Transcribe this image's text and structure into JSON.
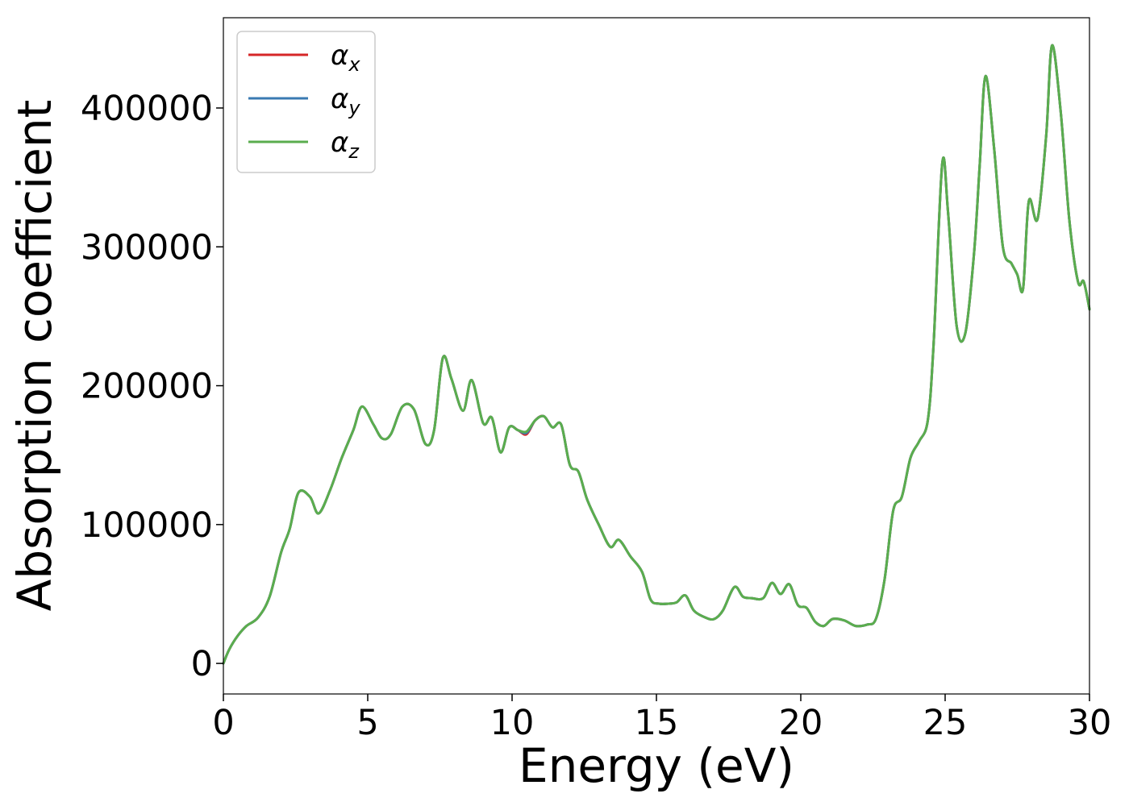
{
  "chart_data": {
    "type": "line",
    "title": "",
    "xlabel": "Energy (eV)",
    "ylabel": "Absorption coefficient",
    "xlim": [
      0,
      30
    ],
    "ylim": [
      -22000,
      465000
    ],
    "xticks": [
      0,
      5,
      10,
      15,
      20,
      25,
      30
    ],
    "xtick_labels": [
      "0",
      "5",
      "10",
      "15",
      "20",
      "25",
      "30"
    ],
    "yticks": [
      0,
      100000,
      200000,
      300000,
      400000
    ],
    "ytick_labels": [
      "0",
      "100000",
      "200000",
      "300000",
      "400000"
    ],
    "grid": false,
    "legend_position": "top-left",
    "x": [
      0,
      0.2,
      0.5,
      0.8,
      1.2,
      1.6,
      2.0,
      2.3,
      2.6,
      3.0,
      3.3,
      3.7,
      4.1,
      4.5,
      4.8,
      5.2,
      5.5,
      5.8,
      6.2,
      6.6,
      7.0,
      7.3,
      7.6,
      7.9,
      8.3,
      8.6,
      9.0,
      9.3,
      9.6,
      9.9,
      10.2,
      10.5,
      10.8,
      11.1,
      11.4,
      11.7,
      12.0,
      12.3,
      12.6,
      13.0,
      13.4,
      13.7,
      14.1,
      14.5,
      14.8,
      15.1,
      15.4,
      15.7,
      16.0,
      16.3,
      16.7,
      17.0,
      17.3,
      17.7,
      18.0,
      18.3,
      18.7,
      19.0,
      19.3,
      19.6,
      19.9,
      20.2,
      20.5,
      20.8,
      21.1,
      21.5,
      21.9,
      22.3,
      22.6,
      22.9,
      23.2,
      23.5,
      23.8,
      24.1,
      24.4,
      24.6,
      24.9,
      25.1,
      25.4,
      25.7,
      26.0,
      26.2,
      26.4,
      26.7,
      27.0,
      27.3,
      27.5,
      27.7,
      27.9,
      28.2,
      28.5,
      28.7,
      29.0,
      29.3,
      29.6,
      29.8,
      30.0
    ],
    "series": [
      {
        "name": "α_x",
        "color": "#d62728",
        "values": [
          0,
          10000,
          20000,
          27000,
          33000,
          48000,
          80000,
          97000,
          123000,
          120000,
          108000,
          125000,
          148000,
          168000,
          185000,
          172000,
          162000,
          165000,
          185000,
          183000,
          158000,
          168000,
          220000,
          205000,
          182000,
          204000,
          173000,
          177000,
          152000,
          170000,
          168000,
          165000,
          175000,
          178000,
          170000,
          172000,
          143000,
          138000,
          118000,
          100000,
          84000,
          89000,
          77000,
          66000,
          46000,
          43000,
          43000,
          44000,
          49000,
          38000,
          33000,
          32000,
          38000,
          55000,
          48000,
          47000,
          47000,
          58000,
          50000,
          57000,
          42000,
          40000,
          30000,
          27000,
          32000,
          31000,
          27000,
          28000,
          32000,
          60000,
          110000,
          120000,
          148000,
          160000,
          175000,
          230000,
          360000,
          325000,
          243000,
          238000,
          295000,
          360000,
          423000,
          370000,
          300000,
          288000,
          280000,
          270000,
          333000,
          320000,
          380000,
          445000,
          398000,
          320000,
          275000,
          275000,
          255000
        ]
      },
      {
        "name": "α_y",
        "color": "#3a7ab2",
        "values": [
          0,
          10000,
          20000,
          27000,
          33000,
          48000,
          80000,
          97000,
          123000,
          120000,
          108000,
          125000,
          148000,
          168000,
          185000,
          172000,
          162000,
          165000,
          185000,
          183000,
          158000,
          168000,
          220000,
          205000,
          182000,
          204000,
          173000,
          177000,
          152000,
          170000,
          168000,
          166000,
          175000,
          178000,
          170000,
          172000,
          143000,
          138000,
          118000,
          100000,
          84000,
          89000,
          77000,
          66000,
          46000,
          43000,
          43000,
          44000,
          49000,
          38000,
          33000,
          32000,
          38000,
          55000,
          48000,
          47000,
          47000,
          58000,
          50000,
          57000,
          42000,
          40000,
          30000,
          27000,
          32000,
          31000,
          27000,
          28000,
          32000,
          60000,
          110000,
          120000,
          148000,
          160000,
          175000,
          230000,
          360000,
          325000,
          243000,
          238000,
          295000,
          360000,
          423000,
          370000,
          300000,
          288000,
          280000,
          270000,
          333000,
          320000,
          380000,
          445000,
          398000,
          320000,
          275000,
          275000,
          255000
        ]
      },
      {
        "name": "α_z",
        "color": "#5aad4e",
        "values": [
          0,
          10000,
          20000,
          27000,
          33000,
          48000,
          80000,
          97000,
          123000,
          120000,
          108000,
          125000,
          148000,
          168000,
          185000,
          172000,
          162000,
          165000,
          185000,
          183000,
          158000,
          168000,
          220000,
          205000,
          182000,
          204000,
          173000,
          177000,
          152000,
          170000,
          168000,
          167000,
          175000,
          178000,
          170000,
          172000,
          143000,
          138000,
          118000,
          100000,
          84000,
          89000,
          77000,
          66000,
          46000,
          43000,
          43000,
          44000,
          49000,
          38000,
          33000,
          32000,
          38000,
          55000,
          48000,
          47000,
          47000,
          58000,
          50000,
          57000,
          42000,
          40000,
          30000,
          27000,
          32000,
          31000,
          27000,
          28000,
          32000,
          60000,
          110000,
          120000,
          148000,
          160000,
          175000,
          230000,
          360000,
          325000,
          243000,
          238000,
          295000,
          360000,
          423000,
          370000,
          300000,
          288000,
          280000,
          270000,
          333000,
          320000,
          380000,
          445000,
          398000,
          320000,
          275000,
          275000,
          255000
        ]
      }
    ],
    "legend": [
      {
        "symbol": "α",
        "sub": "x",
        "color": "#d62728"
      },
      {
        "symbol": "α",
        "sub": "y",
        "color": "#3a7ab2"
      },
      {
        "symbol": "α",
        "sub": "z",
        "color": "#5aad4e"
      }
    ]
  }
}
